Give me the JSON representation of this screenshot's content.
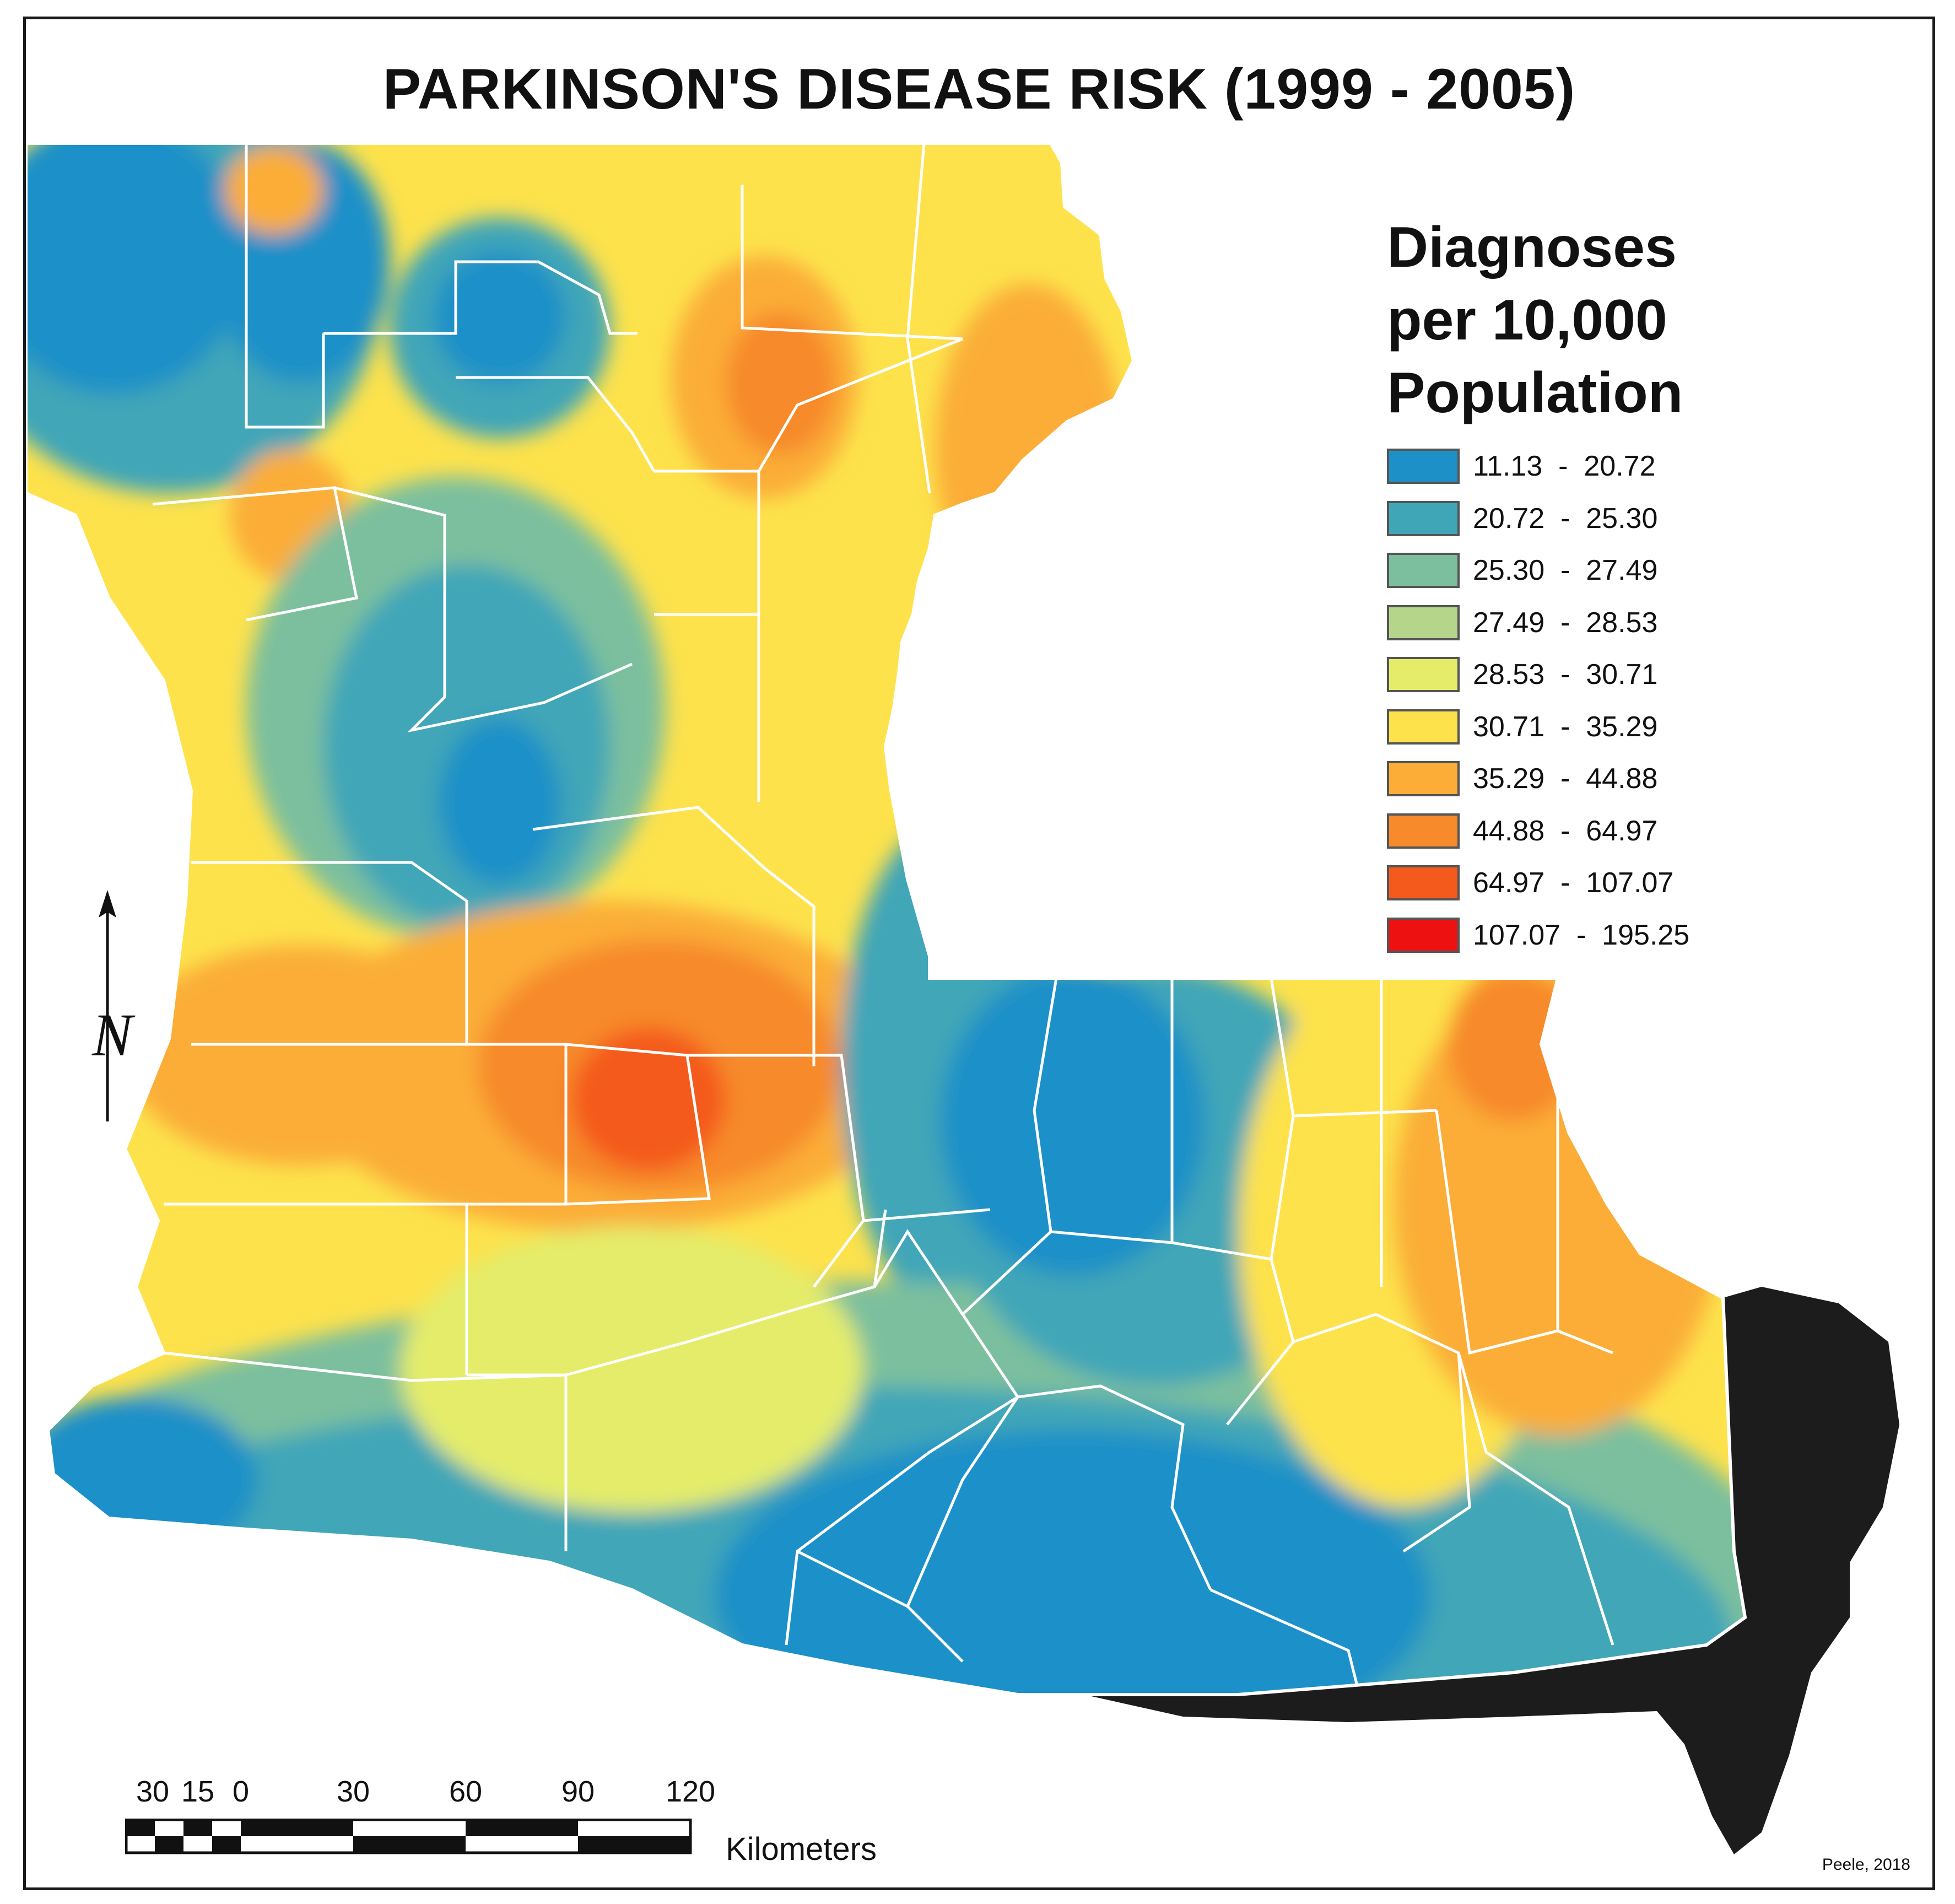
{
  "title": "PARKINSON'S DISEASE RISK (1999 - 2005)",
  "legend": {
    "title_lines": [
      "Diagnoses",
      "per 10,000",
      "Population"
    ],
    "classes": [
      {
        "low": "11.13",
        "high": "20.72",
        "color": "#1e90c8"
      },
      {
        "low": "20.72",
        "high": "25.30",
        "color": "#3fa6b8"
      },
      {
        "low": "25.30",
        "high": "27.49",
        "color": "#7cbf9e"
      },
      {
        "low": "27.49",
        "high": "28.53",
        "color": "#b5d68a"
      },
      {
        "low": "28.53",
        "high": "30.71",
        "color": "#e4ec6a"
      },
      {
        "low": "30.71",
        "high": "35.29",
        "color": "#fde24c"
      },
      {
        "low": "35.29",
        "high": "44.88",
        "color": "#fbad38"
      },
      {
        "low": "44.88",
        "high": "64.97",
        "color": "#f78a2a"
      },
      {
        "low": "64.97",
        "high": "107.07",
        "color": "#f45a1c"
      },
      {
        "low": "107.07",
        "high": "195.25",
        "color": "#ee1111"
      }
    ]
  },
  "north_arrow": {
    "label": "N"
  },
  "scale_bar": {
    "ticks": [
      "30",
      "15",
      "0",
      "30",
      "60",
      "90",
      "120"
    ],
    "unit": "Kilometers"
  },
  "credit": "Peele, 2018"
}
